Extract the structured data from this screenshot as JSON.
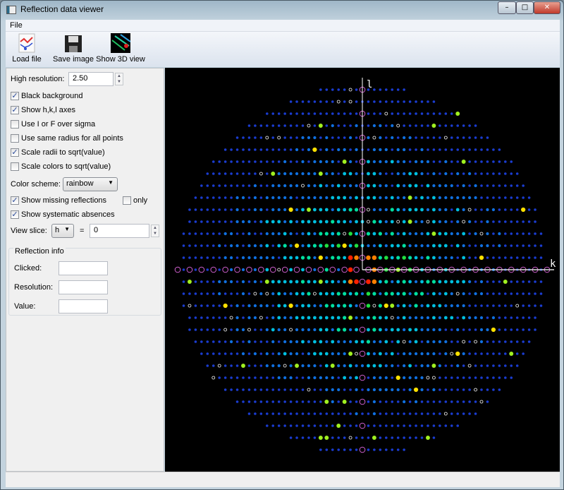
{
  "window": {
    "title": "Reflection data viewer",
    "minimize": "–",
    "maximize": "□",
    "close": "✕"
  },
  "menu": {
    "file": "File"
  },
  "toolbar": {
    "load": "Load file",
    "save": "Save image",
    "show3d": "Show 3D view"
  },
  "controls": {
    "high_resolution_label": "High resolution:",
    "high_resolution_value": "2.50",
    "black_background": {
      "label": "Black background",
      "checked": true
    },
    "show_axes": {
      "label": "Show h,k,l axes",
      "checked": true
    },
    "use_sigma": {
      "label": "Use I or F over sigma",
      "checked": false
    },
    "same_radius": {
      "label": "Use same radius for all points",
      "checked": false
    },
    "scale_radii": {
      "label": "Scale radii to sqrt(value)",
      "checked": true
    },
    "scale_colors": {
      "label": "Scale colors to sqrt(value)",
      "checked": false
    },
    "color_scheme_label": "Color scheme:",
    "color_scheme_value": "rainbow",
    "show_missing": {
      "label": "Show missing reflections",
      "checked": true
    },
    "only": {
      "label": "only",
      "checked": false
    },
    "show_absences": {
      "label": "Show systematic absences",
      "checked": true
    },
    "view_slice_label": "View slice:",
    "view_slice_axis": "h",
    "equals": "=",
    "view_slice_value": "0"
  },
  "reflection_info": {
    "title": "Reflection info",
    "clicked_label": "Clicked:",
    "clicked": "",
    "resolution_label": "Resolution:",
    "resolution": "",
    "value_label": "Value:",
    "value": ""
  },
  "viewer": {
    "vertical_axis": "l",
    "horizontal_axis": "k",
    "background": "#000000",
    "axis_color": "#ffffff",
    "missing_color": "#d060d0",
    "absence_color": "#ffffff",
    "palette": [
      "#1a3cd0",
      "#1070e0",
      "#00c0e0",
      "#00e0a0",
      "#20e040",
      "#a0f020",
      "#ffe000",
      "#ff8000",
      "#ff2000"
    ]
  }
}
